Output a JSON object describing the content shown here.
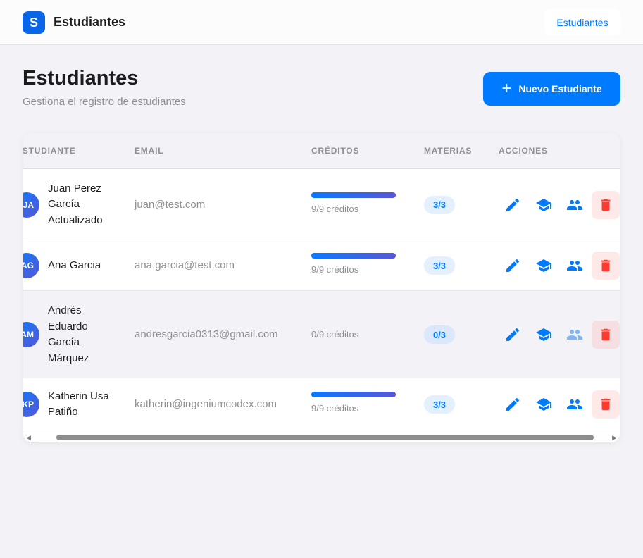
{
  "app": {
    "logo_letter": "S",
    "title": "Estudiantes",
    "nav_button": "Estudiantes"
  },
  "page": {
    "title": "Estudiantes",
    "subtitle": "Gestiona el registro de estudiantes",
    "new_button": "Nuevo Estudiante"
  },
  "colors": {
    "accent": "#007aff",
    "danger": "#ff3b30"
  },
  "table": {
    "headers": [
      "ESTUDIANTE",
      "EMAIL",
      "CRÉDITOS",
      "MATERIAS",
      "ACCIONES"
    ],
    "rows": [
      {
        "initials": "JA",
        "name": "Juan Perez García Actualizado",
        "email": "juan@test.com",
        "credits_text": "9/9 créditos",
        "credits_fraction": 1,
        "subjects": "3/3"
      },
      {
        "initials": "AG",
        "name": "Ana Garcia",
        "email": "ana.garcia@test.com",
        "credits_text": "9/9 créditos",
        "credits_fraction": 1,
        "subjects": "3/3"
      },
      {
        "initials": "AM",
        "name": "Andrés Eduardo García Márquez",
        "email": "andresgarcia0313@gmail.com",
        "credits_text": "0/9 créditos",
        "credits_fraction": 0,
        "subjects": "0/3"
      },
      {
        "initials": "KP",
        "name": "Katherin Usa Patiño",
        "email": "katherin@ingeniumcodex.com",
        "credits_text": "9/9 créditos",
        "credits_fraction": 1,
        "subjects": "3/3"
      }
    ]
  }
}
